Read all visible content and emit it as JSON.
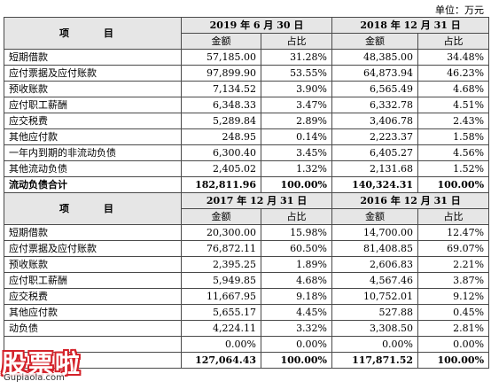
{
  "unit": "单位：万元",
  "table1": {
    "item_header": "项　目",
    "periods": [
      "2019 年 6 月 30 日",
      "2018 年 12 月 31 日"
    ],
    "subheaders": [
      "金额",
      "占比",
      "金额",
      "占比"
    ],
    "rows": [
      {
        "label": "短期借款",
        "values": [
          "57,185.00",
          "31.28%",
          "48,385.00",
          "34.48%"
        ]
      },
      {
        "label": "应付票据及应付账款",
        "values": [
          "97,899.90",
          "53.55%",
          "64,873.94",
          "46.23%"
        ]
      },
      {
        "label": "预收账款",
        "values": [
          "7,134.52",
          "3.90%",
          "6,565.49",
          "4.68%"
        ]
      },
      {
        "label": "应付职工薪酬",
        "values": [
          "6,348.33",
          "3.47%",
          "6,332.78",
          "4.51%"
        ]
      },
      {
        "label": "应交税费",
        "values": [
          "5,289.84",
          "2.89%",
          "3,406.78",
          "2.43%"
        ]
      },
      {
        "label": "其他应付款",
        "values": [
          "248.95",
          "0.14%",
          "2,223.37",
          "1.58%"
        ]
      },
      {
        "label": "一年内到期的非流动负债",
        "values": [
          "6,300.40",
          "3.45%",
          "6,405.27",
          "4.56%"
        ]
      },
      {
        "label": "其他流动负债",
        "values": [
          "2,405.02",
          "1.32%",
          "2,131.68",
          "1.52%"
        ]
      },
      {
        "label": "流动负债合计",
        "values": [
          "182,811.96",
          "100.00%",
          "140,324.31",
          "100.00%"
        ]
      }
    ]
  },
  "table2": {
    "item_header": "项　目",
    "periods": [
      "2017 年 12 月 31 日",
      "2016 年 12 月 31 日"
    ],
    "subheaders": [
      "金额",
      "占比",
      "金额",
      "占比"
    ],
    "rows": [
      {
        "label": "短期借款",
        "values": [
          "20,300.00",
          "15.98%",
          "14,700.00",
          "12.47%"
        ]
      },
      {
        "label": "应付票据及应付账款",
        "values": [
          "76,872.11",
          "60.50%",
          "81,408.85",
          "69.07%"
        ]
      },
      {
        "label": "预收账款",
        "values": [
          "2,395.25",
          "1.89%",
          "2,606.83",
          "2.21%"
        ]
      },
      {
        "label": "应付职工薪酬",
        "values": [
          "5,949.85",
          "4.68%",
          "4,567.46",
          "3.87%"
        ]
      },
      {
        "label": "应交税费",
        "values": [
          "11,667.95",
          "9.18%",
          "10,752.01",
          "9.12%"
        ]
      },
      {
        "label": "其他应付款",
        "values": [
          "5,655.17",
          "4.45%",
          "527.88",
          "0.45%"
        ]
      },
      {
        "label": "动负债",
        "values": [
          "4,224.11",
          "3.32%",
          "3,308.50",
          "2.81%"
        ]
      },
      {
        "label": "",
        "values": [
          "0.00%",
          "0.00%",
          "0.00%",
          "0.00%"
        ]
      },
      {
        "label": "",
        "values": [
          "127,064.43",
          "100.00%",
          "117,871.52",
          "100.00%"
        ]
      }
    ]
  },
  "watermark": {
    "main": "股票啦",
    "sub": "Gupiaola.com"
  }
}
